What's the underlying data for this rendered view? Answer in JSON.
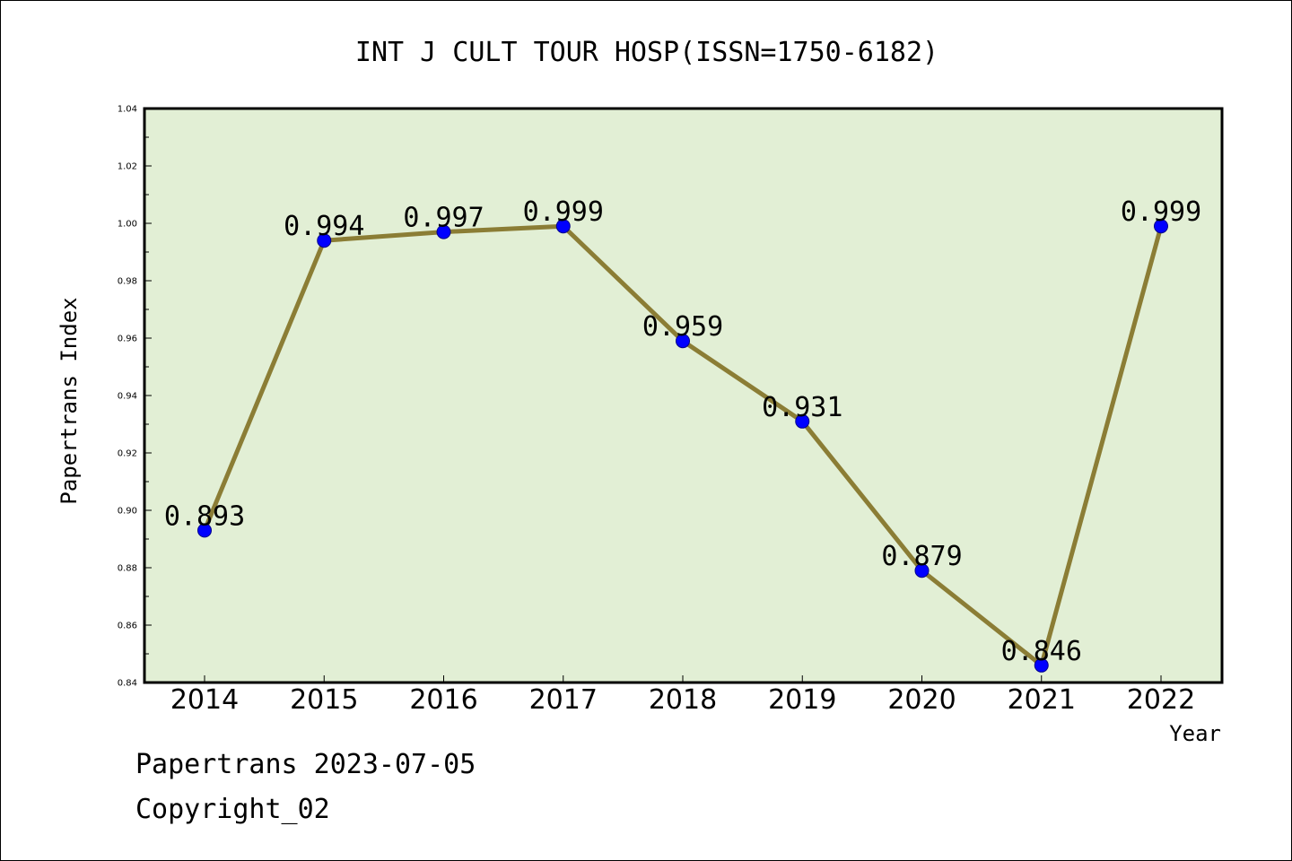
{
  "chart_data": {
    "type": "line",
    "title": "INT J CULT TOUR HOSP(ISSN=1750-6182)",
    "xlabel": "Year",
    "ylabel": "Papertrans Index",
    "categories": [
      "2014",
      "2015",
      "2016",
      "2017",
      "2018",
      "2019",
      "2020",
      "2021",
      "2022"
    ],
    "values": [
      0.893,
      0.994,
      0.997,
      0.999,
      0.959,
      0.931,
      0.879,
      0.846,
      0.999
    ],
    "data_labels": [
      "0.893",
      "0.994",
      "0.997",
      "0.999",
      "0.959",
      "0.931",
      "0.879",
      "0.846",
      "0.999"
    ],
    "ylim": [
      0.84,
      1.04
    ],
    "yticks": [
      "0.84",
      "0.86",
      "0.88",
      "0.90",
      "0.92",
      "0.94",
      "0.96",
      "0.98",
      "1.00",
      "1.02",
      "1.04"
    ],
    "grid": false,
    "colors": {
      "plot_background": "#e2efd5",
      "line": "#8b7d35",
      "marker": "#0000ff"
    }
  },
  "footer": {
    "line1": "Papertrans 2023-07-05",
    "line2": "Copyright_02"
  }
}
